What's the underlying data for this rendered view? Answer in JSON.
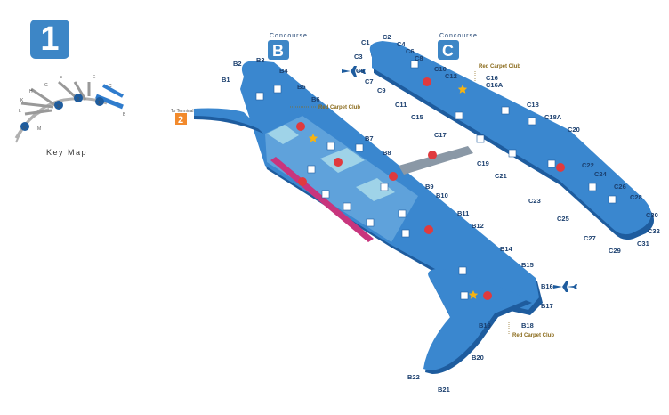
{
  "terminal": {
    "number": "1"
  },
  "key_map": {
    "label": "Key Map",
    "letters": [
      "F",
      "G",
      "H",
      "K",
      "L",
      "M",
      "E",
      "C",
      "B"
    ],
    "numbers": [
      "1",
      "2",
      "3",
      "5"
    ]
  },
  "concourse_b": {
    "heading": "Concourse",
    "letter": "B"
  },
  "concourse_c": {
    "heading": "Concourse",
    "letter": "C"
  },
  "terminal_link": {
    "label": "To Terminal",
    "number": "2"
  },
  "red_carpet_club": "Red Carpet Club",
  "gates": {
    "b": [
      "B1",
      "B2",
      "B3",
      "B4",
      "B5",
      "B6",
      "B7",
      "B8",
      "B9",
      "B10",
      "B11",
      "B12",
      "B14",
      "B15",
      "B16",
      "B17",
      "B18",
      "B19",
      "B20",
      "B21",
      "B22"
    ],
    "c": [
      "C1",
      "C2",
      "C3",
      "C4",
      "C5",
      "C6",
      "C7",
      "C8",
      "C9",
      "C10",
      "C11",
      "C12",
      "C15",
      "C16",
      "C16A",
      "C17",
      "C18",
      "C18A",
      "C19",
      "C20",
      "C21",
      "C22",
      "C23",
      "C24",
      "C25",
      "C26",
      "C27",
      "C28",
      "C29",
      "C30",
      "C31",
      "C32"
    ]
  },
  "colors": {
    "concourse_fill": "#3a87cf",
    "concourse_dark": "#1e5c9e",
    "badge": "#3d86c6",
    "terminal_link_badge": "#f28a2c",
    "restaurant_red": "#e03a3e",
    "shop_pink": "#c8357d",
    "club_gold": "#f6b312",
    "walkway_gray": "#8a98a6"
  },
  "icons": [
    "airplane-icon",
    "restaurant-icon",
    "restroom-icon",
    "information-icon",
    "elevator-icon",
    "baggage-icon",
    "club-star-icon",
    "shop-icon"
  ]
}
